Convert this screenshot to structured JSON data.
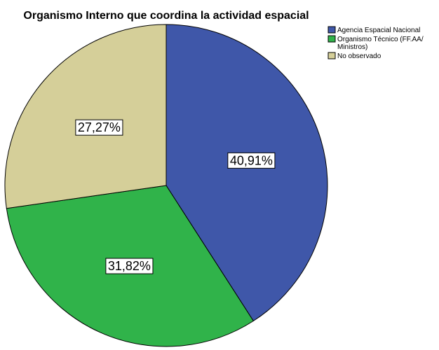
{
  "chart_data": {
    "type": "pie",
    "title": "Organismo Interno que coordina la actividad espacial",
    "slices": [
      {
        "label": "Agencia Espacial Nacional",
        "legend_lines": [
          "Agencia Espacial Nacional"
        ],
        "value": 40.91,
        "display": "40,91%",
        "color": "#3f57a9"
      },
      {
        "label": "Organismo Técnico (FF.AA/ Ministros)",
        "legend_lines": [
          "Organismo Técnico (FF.AA/",
          "Ministros)"
        ],
        "value": 31.82,
        "display": "31,82%",
        "color": "#30b34a"
      },
      {
        "label": "No observado",
        "legend_lines": [
          "No observado"
        ],
        "value": 27.27,
        "display": "27,27%",
        "color": "#d5cf99"
      }
    ],
    "start_angle": "12 o'clock",
    "direction": "clockwise",
    "legend_position": "top-right"
  }
}
